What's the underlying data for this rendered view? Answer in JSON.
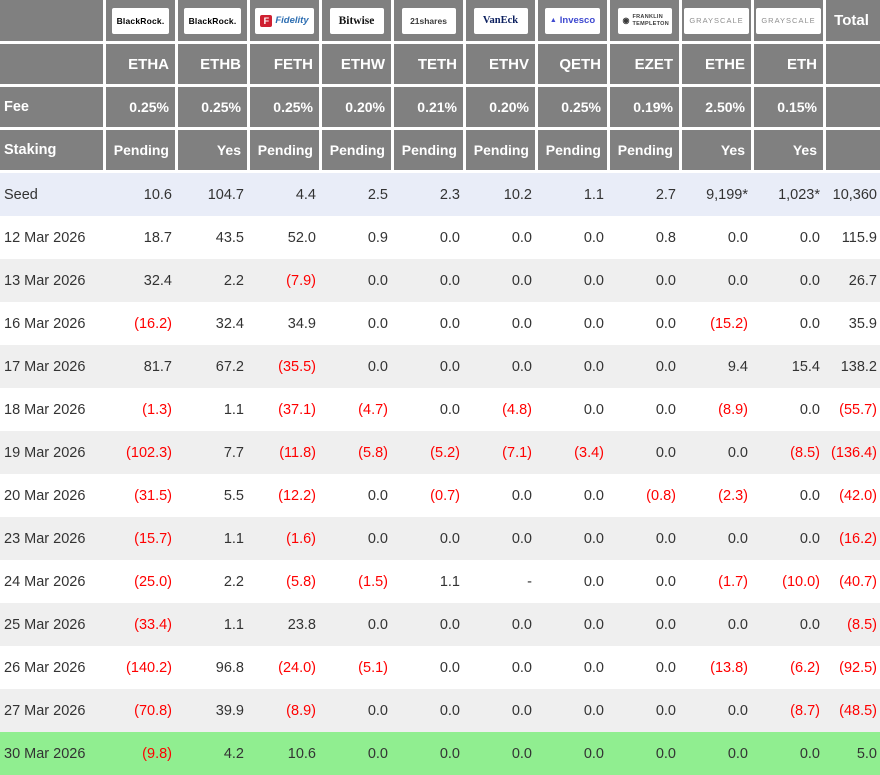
{
  "colors": {
    "header_bg": "#808080",
    "header_text": "#ffffff",
    "seed_row_bg": "#e9edf8",
    "alt_row_bg": "#efefef",
    "latest_row_bg": "#90ee90",
    "negative": "#ff0000",
    "body_text": "#333333",
    "fidelity_red": "#cf2031",
    "fidelity_blue": "#2f6fb2",
    "vaneck_navy": "#0b1f5e",
    "invesco_blue": "#3f4ad0",
    "grayscale_gray": "#8f8f8f"
  },
  "icons": {
    "invesco_mark": "▲",
    "franklin_mark": "◉",
    "fidelity_mark": "F"
  },
  "table": {
    "corner_labels": {
      "fee": "Fee",
      "staking": "Staking"
    },
    "total_header": "Total",
    "funds": [
      {
        "issuer": "BlackRock",
        "brand": "blackrock",
        "logo_text": "BlackRock.",
        "ticker": "ETHA",
        "fee": "0.25%",
        "staking": "Pending"
      },
      {
        "issuer": "BlackRock",
        "brand": "blackrock",
        "logo_text": "BlackRock.",
        "ticker": "ETHB",
        "fee": "0.25%",
        "staking": "Yes"
      },
      {
        "issuer": "Fidelity",
        "brand": "fidelity",
        "logo_text": "Fidelity",
        "ticker": "FETH",
        "fee": "0.25%",
        "staking": "Pending"
      },
      {
        "issuer": "Bitwise",
        "brand": "bitwise",
        "logo_text": "Bitwise",
        "ticker": "ETHW",
        "fee": "0.20%",
        "staking": "Pending"
      },
      {
        "issuer": "21shares",
        "brand": "21shares",
        "logo_text": "21shares",
        "ticker": "TETH",
        "fee": "0.21%",
        "staking": "Pending"
      },
      {
        "issuer": "VanEck",
        "brand": "vaneck",
        "logo_text": "VanEck",
        "ticker": "ETHV",
        "fee": "0.20%",
        "staking": "Pending"
      },
      {
        "issuer": "Invesco",
        "brand": "invesco",
        "logo_text": "Invesco",
        "ticker": "QETH",
        "fee": "0.25%",
        "staking": "Pending"
      },
      {
        "issuer": "Franklin Templeton",
        "brand": "franklin",
        "logo_text": "FRANKLIN TEMPLETON",
        "ticker": "EZET",
        "fee": "0.19%",
        "staking": "Pending"
      },
      {
        "issuer": "Grayscale",
        "brand": "grayscale",
        "logo_text": "GRAYSCALE",
        "ticker": "ETHE",
        "fee": "2.50%",
        "staking": "Yes"
      },
      {
        "issuer": "Grayscale",
        "brand": "grayscale",
        "logo_text": "GRAYSCALE",
        "ticker": "ETH",
        "fee": "0.15%",
        "staking": "Yes"
      }
    ],
    "seed": {
      "label": "Seed",
      "values": [
        "10.6",
        "104.7",
        "4.4",
        "2.5",
        "2.3",
        "10.2",
        "1.1",
        "2.7",
        "9,199*",
        "1,023*"
      ],
      "total": "10,360"
    },
    "rows": [
      {
        "date": "12 Mar 2026",
        "values": [
          "18.7",
          "43.5",
          "52.0",
          "0.9",
          "0.0",
          "0.0",
          "0.0",
          "0.8",
          "0.0",
          "0.0"
        ],
        "total": "115.9"
      },
      {
        "date": "13 Mar 2026",
        "values": [
          "32.4",
          "2.2",
          "(7.9)",
          "0.0",
          "0.0",
          "0.0",
          "0.0",
          "0.0",
          "0.0",
          "0.0"
        ],
        "total": "26.7"
      },
      {
        "date": "16 Mar 2026",
        "values": [
          "(16.2)",
          "32.4",
          "34.9",
          "0.0",
          "0.0",
          "0.0",
          "0.0",
          "0.0",
          "(15.2)",
          "0.0"
        ],
        "total": "35.9"
      },
      {
        "date": "17 Mar 2026",
        "values": [
          "81.7",
          "67.2",
          "(35.5)",
          "0.0",
          "0.0",
          "0.0",
          "0.0",
          "0.0",
          "9.4",
          "15.4"
        ],
        "total": "138.2"
      },
      {
        "date": "18 Mar 2026",
        "values": [
          "(1.3)",
          "1.1",
          "(37.1)",
          "(4.7)",
          "0.0",
          "(4.8)",
          "0.0",
          "0.0",
          "(8.9)",
          "0.0"
        ],
        "total": "(55.7)"
      },
      {
        "date": "19 Mar 2026",
        "values": [
          "(102.3)",
          "7.7",
          "(11.8)",
          "(5.8)",
          "(5.2)",
          "(7.1)",
          "(3.4)",
          "0.0",
          "0.0",
          "(8.5)"
        ],
        "total": "(136.4)"
      },
      {
        "date": "20 Mar 2026",
        "values": [
          "(31.5)",
          "5.5",
          "(12.2)",
          "0.0",
          "(0.7)",
          "0.0",
          "0.0",
          "(0.8)",
          "(2.3)",
          "0.0"
        ],
        "total": "(42.0)"
      },
      {
        "date": "23 Mar 2026",
        "values": [
          "(15.7)",
          "1.1",
          "(1.6)",
          "0.0",
          "0.0",
          "0.0",
          "0.0",
          "0.0",
          "0.0",
          "0.0"
        ],
        "total": "(16.2)"
      },
      {
        "date": "24 Mar 2026",
        "values": [
          "(25.0)",
          "2.2",
          "(5.8)",
          "(1.5)",
          "1.1",
          "-",
          "0.0",
          "0.0",
          "(1.7)",
          "(10.0)"
        ],
        "total": "(40.7)"
      },
      {
        "date": "25 Mar 2026",
        "values": [
          "(33.4)",
          "1.1",
          "23.8",
          "0.0",
          "0.0",
          "0.0",
          "0.0",
          "0.0",
          "0.0",
          "0.0"
        ],
        "total": "(8.5)"
      },
      {
        "date": "26 Mar 2026",
        "values": [
          "(140.2)",
          "96.8",
          "(24.0)",
          "(5.1)",
          "0.0",
          "0.0",
          "0.0",
          "0.0",
          "(13.8)",
          "(6.2)"
        ],
        "total": "(92.5)"
      },
      {
        "date": "27 Mar 2026",
        "values": [
          "(70.8)",
          "39.9",
          "(8.9)",
          "0.0",
          "0.0",
          "0.0",
          "0.0",
          "0.0",
          "0.0",
          "(8.7)"
        ],
        "total": "(48.5)"
      },
      {
        "date": "30 Mar 2026",
        "values": [
          "(9.8)",
          "4.2",
          "10.6",
          "0.0",
          "0.0",
          "0.0",
          "0.0",
          "0.0",
          "0.0",
          "0.0"
        ],
        "total": "5.0",
        "highlight": "latest"
      }
    ]
  }
}
